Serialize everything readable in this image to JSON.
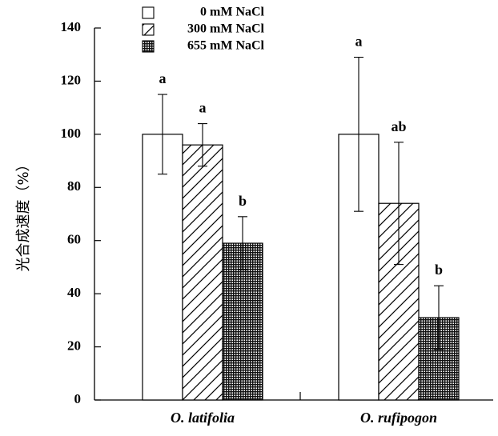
{
  "chart_data": {
    "type": "bar",
    "ylabel": "光合成速度（%）",
    "xlabel": "",
    "ylim": [
      0,
      140
    ],
    "yticks": [
      0,
      20,
      40,
      60,
      80,
      100,
      120,
      140
    ],
    "grid": false,
    "legend_position": "top-left",
    "categories": [
      "O. latifolia",
      "O. rufipogon"
    ],
    "series": [
      {
        "name": "0 mM NaCl",
        "pattern": "white",
        "values": [
          100,
          100
        ],
        "errors": [
          15,
          29
        ],
        "labels": [
          "a",
          "a"
        ]
      },
      {
        "name": "300 mM NaCl",
        "pattern": "diagonal-hatch",
        "values": [
          96,
          74
        ],
        "errors": [
          8,
          23
        ],
        "labels": [
          "a",
          "ab"
        ]
      },
      {
        "name": "655 mM NaCl",
        "pattern": "grid",
        "values": [
          59,
          31
        ],
        "errors": [
          10,
          12
        ],
        "labels": [
          "b",
          "b"
        ]
      }
    ]
  }
}
